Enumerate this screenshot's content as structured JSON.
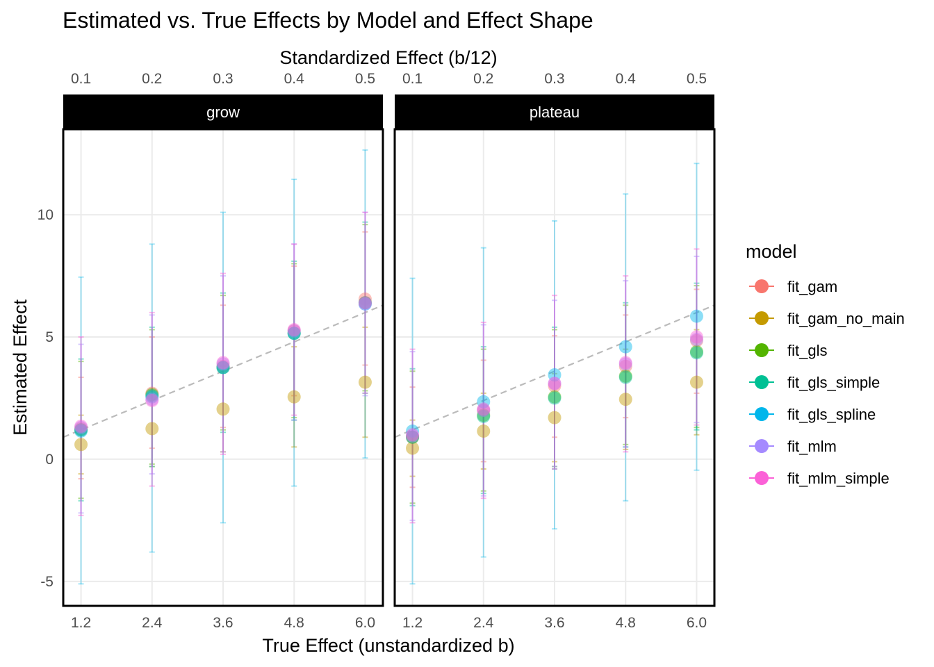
{
  "chart_data": {
    "type": "scatter",
    "title": "Estimated vs. True Effects by Model and Effect Shape",
    "xlabel": "True Effect (unstandardized b)",
    "x2label": "Standardized Effect (b/12)",
    "ylabel": "Estimated Effect",
    "x_ticks": [
      "1.2",
      "2.4",
      "3.6",
      "4.8",
      "6.0"
    ],
    "x2_ticks": [
      "0.1",
      "0.2",
      "0.3",
      "0.4",
      "0.5"
    ],
    "y_ticks": [
      "-5",
      "0",
      "5",
      "10"
    ],
    "x_values": [
      1.2,
      2.4,
      3.6,
      4.8,
      6.0
    ],
    "xlim": [
      0.9,
      6.3
    ],
    "ylim": [
      -6,
      13.5
    ],
    "grid": true,
    "reference_line": {
      "style": "dashed",
      "color": "#bbbbbb",
      "slope": 1,
      "intercept": 0
    },
    "legend": {
      "title": "model",
      "placement": "right",
      "entries": [
        {
          "name": "fit_gam",
          "color": "#F8766D"
        },
        {
          "name": "fit_gam_no_main",
          "color": "#C49A00"
        },
        {
          "name": "fit_gls",
          "color": "#53B400"
        },
        {
          "name": "fit_gls_simple",
          "color": "#00C094"
        },
        {
          "name": "fit_gls_spline",
          "color": "#00B6EB"
        },
        {
          "name": "fit_mlm",
          "color": "#A58AFF"
        },
        {
          "name": "fit_mlm_simple",
          "color": "#FB61D7"
        }
      ]
    },
    "panels": [
      {
        "name": "grow",
        "series": [
          {
            "name": "fit_gam",
            "color": "#F8766D",
            "y": [
              1.25,
              2.7,
              3.8,
              5.25,
              6.55
            ],
            "lo": [
              -0.8,
              0.45,
              1.3,
              2.6,
              3.85
            ],
            "hi": [
              3.35,
              5.0,
              6.3,
              7.9,
              9.3
            ]
          },
          {
            "name": "fit_gam_no_main",
            "color": "#C49A00",
            "y": [
              0.6,
              1.25,
              2.05,
              2.55,
              3.15
            ],
            "lo": [
              -0.6,
              -0.3,
              0.3,
              0.5,
              0.9
            ],
            "hi": [
              1.8,
              2.8,
              3.8,
              4.6,
              5.4
            ]
          },
          {
            "name": "fit_gls",
            "color": "#53B400",
            "y": [
              1.2,
              2.65,
              3.75,
              5.15,
              6.4
            ],
            "lo": [
              -1.6,
              -0.2,
              1.2,
              1.7,
              2.8
            ],
            "hi": [
              4.0,
              5.3,
              6.7,
              8.0,
              9.6
            ]
          },
          {
            "name": "fit_gls_simple",
            "color": "#00C094",
            "y": [
              1.2,
              2.6,
              3.75,
              5.15,
              6.4
            ],
            "lo": [
              -1.7,
              -0.3,
              1.1,
              1.6,
              2.7
            ],
            "hi": [
              4.1,
              5.4,
              6.8,
              8.1,
              9.7
            ]
          },
          {
            "name": "fit_gls_spline",
            "color": "#00B6EB",
            "y": [
              1.15,
              2.55,
              3.75,
              5.15,
              6.35
            ],
            "lo": [
              -5.1,
              -3.8,
              -2.6,
              -1.1,
              0.05
            ],
            "hi": [
              7.45,
              8.8,
              10.1,
              11.45,
              12.65
            ]
          },
          {
            "name": "fit_mlm",
            "color": "#A58AFF",
            "y": [
              1.3,
              2.45,
              3.9,
              5.25,
              6.35
            ],
            "lo": [
              -2.2,
              -0.6,
              0.3,
              1.6,
              2.6
            ],
            "hi": [
              4.7,
              5.9,
              7.5,
              8.8,
              10.1
            ]
          },
          {
            "name": "fit_mlm_simple",
            "color": "#FB61D7",
            "y": [
              1.35,
              2.4,
              3.95,
              5.3,
              6.4
            ],
            "lo": [
              -2.3,
              -1.1,
              0.2,
              1.8,
              2.7
            ],
            "hi": [
              5.0,
              6.0,
              7.6,
              8.8,
              10.1
            ]
          }
        ]
      },
      {
        "name": "plateau",
        "series": [
          {
            "name": "fit_gam",
            "color": "#F8766D",
            "y": [
              0.9,
              2.0,
              3.0,
              3.8,
              4.85
            ],
            "lo": [
              -1.15,
              -0.1,
              0.9,
              1.7,
              2.7
            ],
            "hi": [
              2.95,
              4.05,
              5.05,
              5.9,
              6.95
            ]
          },
          {
            "name": "fit_gam_no_main",
            "color": "#C49A00",
            "y": [
              0.45,
              1.15,
              1.7,
              2.45,
              3.15
            ],
            "lo": [
              -0.7,
              -0.4,
              -0.1,
              0.4,
              1.0
            ],
            "hi": [
              1.6,
              2.7,
              3.5,
              4.5,
              5.3
            ]
          },
          {
            "name": "fit_gls",
            "color": "#53B400",
            "y": [
              0.9,
              1.8,
              2.55,
              3.4,
              4.4
            ],
            "lo": [
              -1.8,
              -1.3,
              -0.3,
              0.6,
              1.3
            ],
            "hi": [
              3.6,
              4.5,
              5.3,
              6.3,
              7.1
            ]
          },
          {
            "name": "fit_gls_simple",
            "color": "#00C094",
            "y": [
              0.9,
              1.75,
              2.5,
              3.35,
              4.35
            ],
            "lo": [
              -1.9,
              -1.4,
              -0.4,
              0.5,
              1.2
            ],
            "hi": [
              3.7,
              4.6,
              5.4,
              6.4,
              7.2
            ]
          },
          {
            "name": "fit_gls_spline",
            "color": "#00B6EB",
            "y": [
              1.15,
              2.35,
              3.45,
              4.6,
              5.85
            ],
            "lo": [
              -5.1,
              -4.0,
              -2.85,
              -1.7,
              -0.45
            ],
            "hi": [
              7.4,
              8.65,
              9.75,
              10.85,
              12.1
            ]
          },
          {
            "name": "fit_mlm",
            "color": "#A58AFF",
            "y": [
              0.95,
              2.0,
              3.1,
              3.9,
              4.9
            ],
            "lo": [
              -2.5,
              -1.5,
              -0.3,
              0.5,
              1.5
            ],
            "hi": [
              4.4,
              5.5,
              6.5,
              7.3,
              8.3
            ]
          },
          {
            "name": "fit_mlm_simple",
            "color": "#FB61D7",
            "y": [
              1.0,
              2.05,
              3.1,
              3.95,
              5.0
            ],
            "lo": [
              -2.6,
              -1.6,
              -0.4,
              0.3,
              1.4
            ],
            "hi": [
              4.5,
              5.6,
              6.7,
              7.5,
              8.6
            ]
          }
        ]
      }
    ]
  }
}
